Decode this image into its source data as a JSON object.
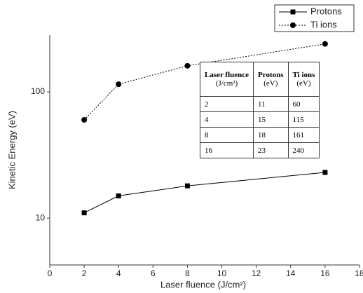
{
  "chart_data": {
    "type": "line",
    "xlabel": "Laser fluence (J/cm²)",
    "ylabel": "Kinetic Energy (eV)",
    "x": [
      2,
      4,
      8,
      16
    ],
    "series": [
      {
        "name": "Protons",
        "color": "#000000",
        "marker": "square",
        "linestyle": "solid",
        "values": [
          11,
          15,
          18,
          23
        ]
      },
      {
        "name": "Ti ions",
        "color": "#000000",
        "marker": "circle",
        "linestyle": "dotted",
        "values": [
          60,
          115,
          161,
          240
        ]
      }
    ],
    "xlim": [
      0,
      18
    ],
    "xticks": [
      0,
      2,
      4,
      6,
      8,
      10,
      12,
      14,
      16,
      18
    ],
    "ylim": [
      4.25,
      282
    ],
    "yticks": [
      10,
      100
    ],
    "log_y": true,
    "legend": "upper right",
    "table": {
      "header": [
        [
          "Laser fluence",
          "(J/cm²)"
        ],
        [
          "Protons",
          "(eV)"
        ],
        [
          "Ti ions",
          "(eV)"
        ]
      ],
      "rows": [
        [
          2,
          11,
          60
        ],
        [
          4,
          15,
          115
        ],
        [
          8,
          18,
          161
        ],
        [
          16,
          23,
          240
        ]
      ]
    }
  }
}
